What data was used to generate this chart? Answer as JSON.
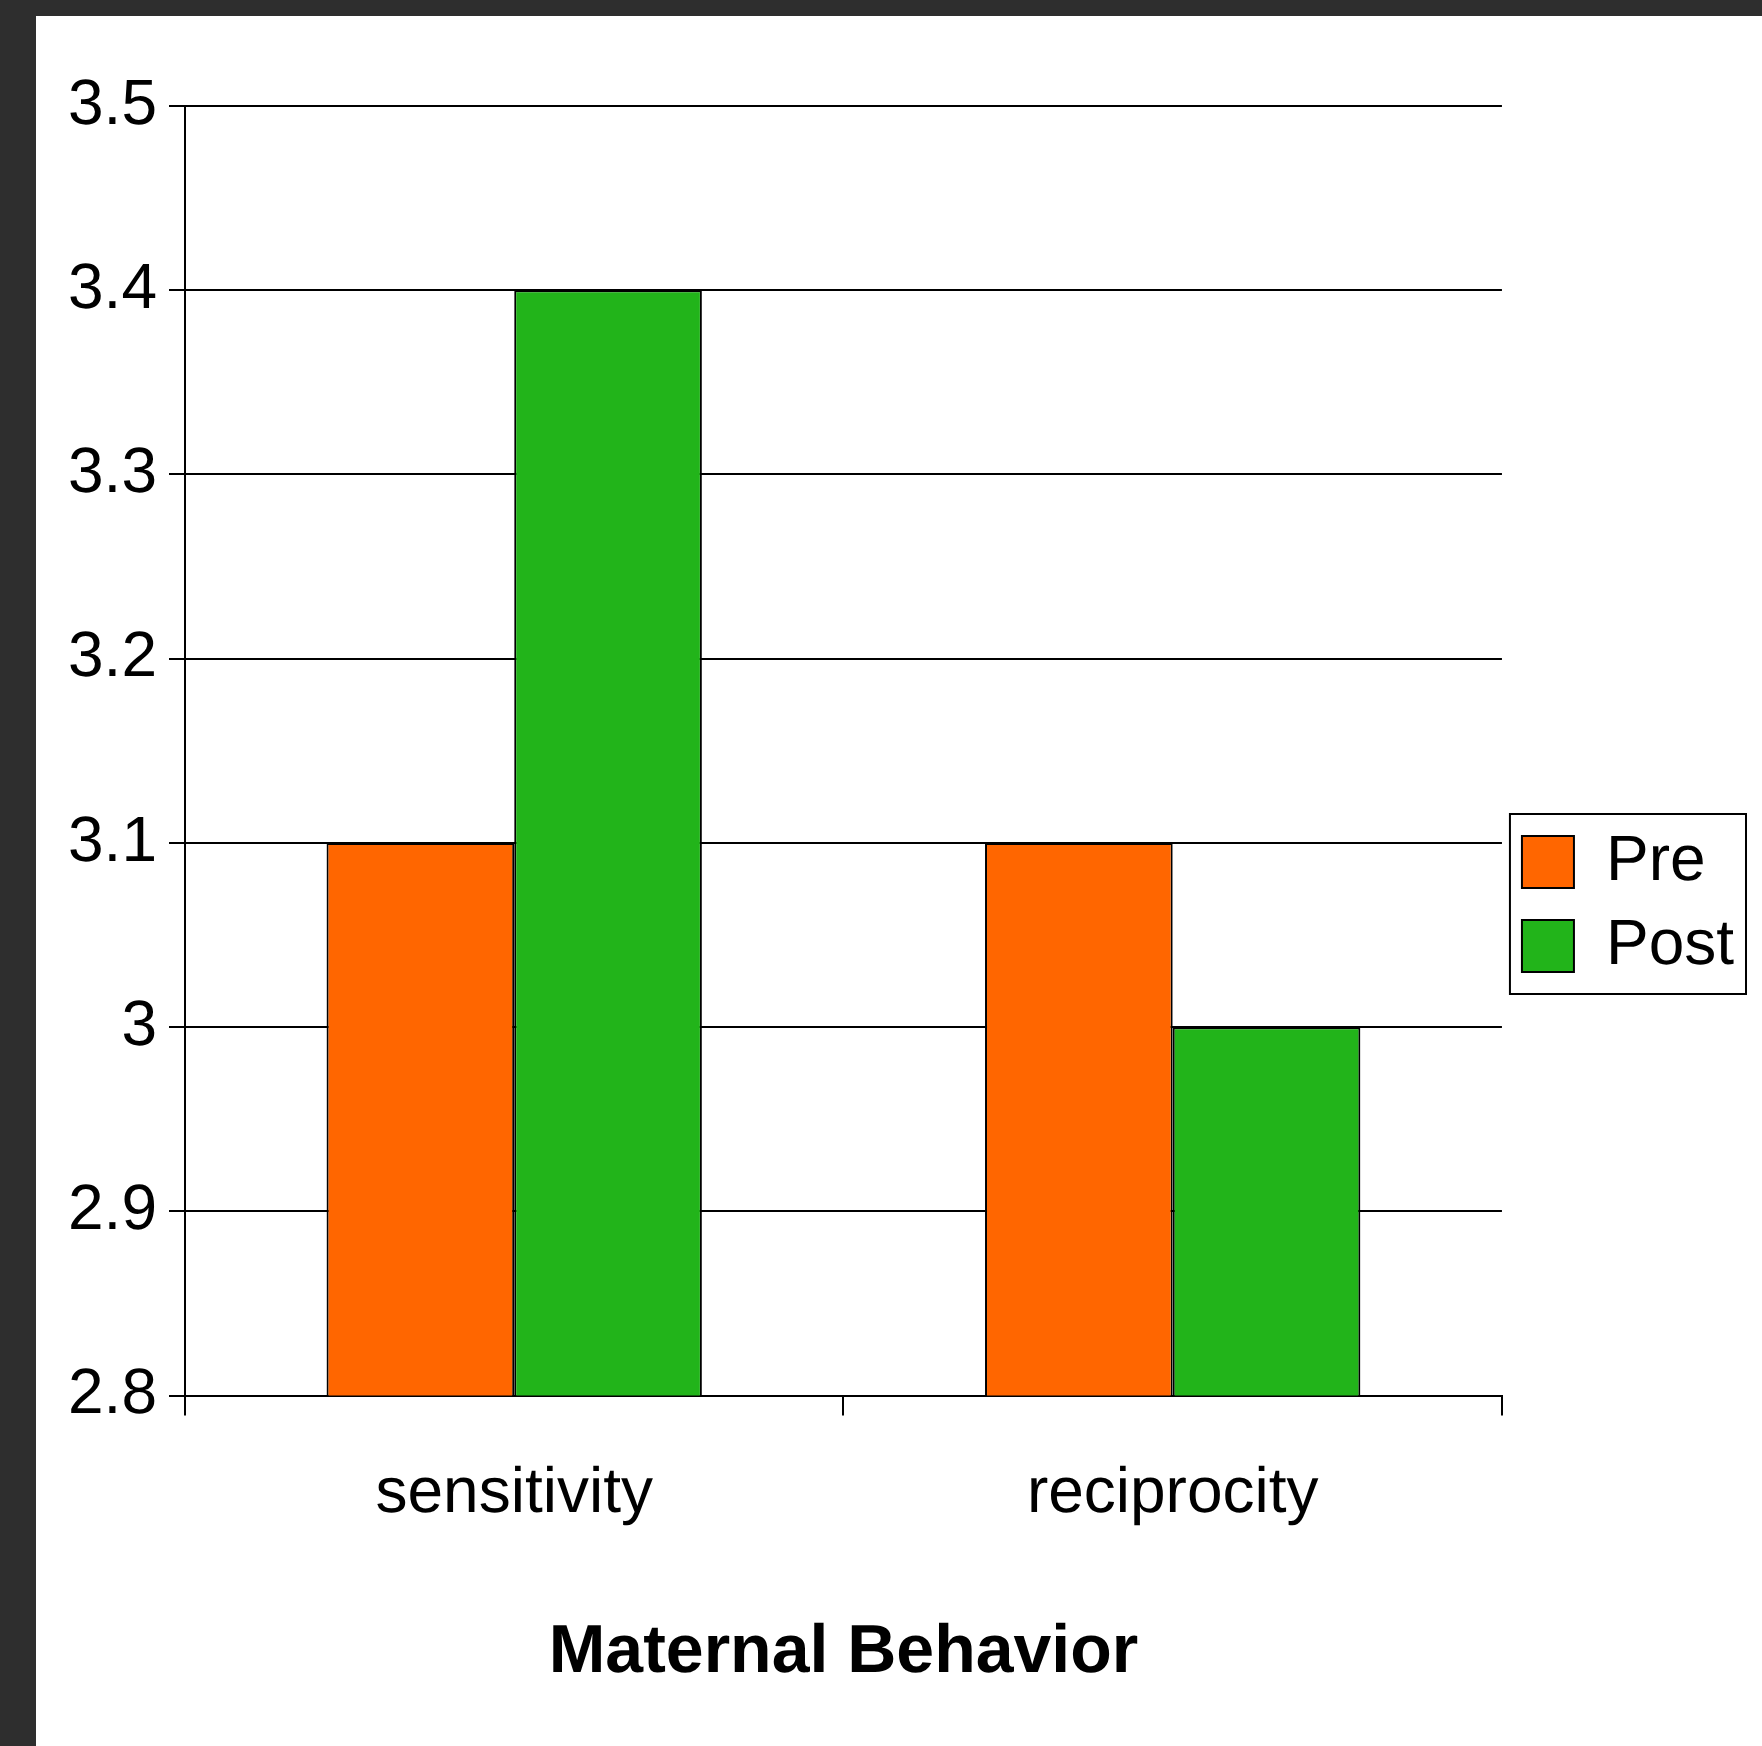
{
  "chart_data": {
    "type": "bar",
    "xlabel": "Maternal Behavior",
    "categories": [
      "sensitivity",
      "reciprocity"
    ],
    "series": [
      {
        "name": "Pre",
        "color": "#ff6600",
        "values": [
          3.1,
          3.1
        ]
      },
      {
        "name": "Post",
        "color": "#22b41a",
        "values": [
          3.4,
          3.0
        ]
      }
    ],
    "ylim": [
      2.8,
      3.5
    ],
    "yticks": [
      2.8,
      2.9,
      3,
      3.1,
      3.2,
      3.3,
      3.4,
      3.5
    ],
    "grid": "y",
    "legend": "right"
  }
}
